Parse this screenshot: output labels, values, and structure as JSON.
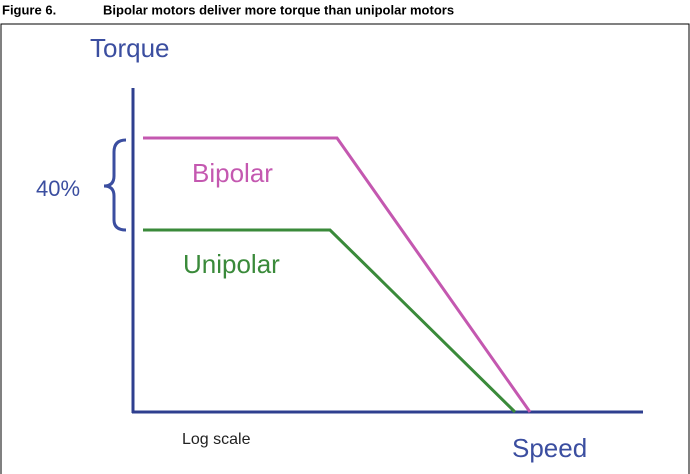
{
  "caption": {
    "label": "Figure 6.",
    "title": "Bipolar motors deliver more torque than unipolar motors"
  },
  "diagram": {
    "y_axis_label": "Torque",
    "x_axis_label": "Speed",
    "x_axis_note": "Log scale",
    "curves": [
      {
        "label": "Bipolar"
      },
      {
        "label": "Unipolar"
      }
    ],
    "annotation": "40%"
  }
}
